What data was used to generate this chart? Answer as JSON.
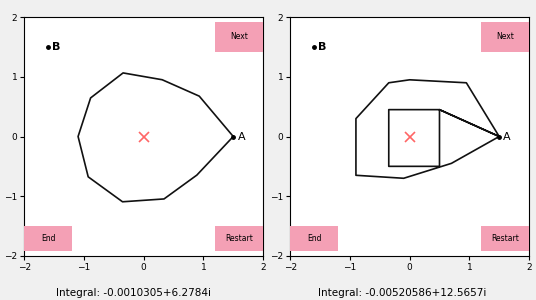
{
  "bg_color": "#f0f0f0",
  "panel_bg": "#ffffff",
  "xlim": [
    -2,
    2
  ],
  "ylim": [
    -2,
    2
  ],
  "xticks": [
    -2,
    -1,
    0,
    1,
    2
  ],
  "yticks": [
    -2,
    -1,
    0,
    1,
    2
  ],
  "origin_x": 0,
  "origin_y": 0,
  "cross_color": "#ff6666",
  "point_A": [
    1.5,
    0
  ],
  "point_B": [
    -1.6,
    1.5
  ],
  "label_A": "A",
  "label_B": "B",
  "button_color": "#f4a0b5",
  "button_text_color": "#000000",
  "integral1": "Integral: -0.0010305+6.2784i",
  "integral2": "Integral: -0.00520586+12.5657i",
  "line_color": "#111111",
  "line_width": 1.2,
  "dot_size": 5,
  "loop1_vertices_x": [
    1.5,
    0.95,
    -0.35,
    -1.1,
    -1.1,
    -0.35,
    0.35,
    1.1,
    1.5
  ],
  "loop1_vertices_y": [
    0.0,
    0.95,
    0.95,
    0.35,
    -0.35,
    -1.15,
    -1.15,
    -0.6,
    0.0
  ],
  "loop2_outer_x": [
    1.5,
    0.95,
    -0.35,
    -0.9,
    -0.9,
    -0.1,
    0.7,
    1.5
  ],
  "loop2_outer_y": [
    0.0,
    0.9,
    0.9,
    0.3,
    -0.65,
    -0.7,
    -0.45,
    0.0
  ],
  "loop2_inner_x": [
    0.5,
    0.5,
    -0.35,
    -0.35,
    0.5
  ],
  "loop2_inner_y": [
    0.45,
    -0.5,
    -0.5,
    0.45,
    0.45
  ]
}
